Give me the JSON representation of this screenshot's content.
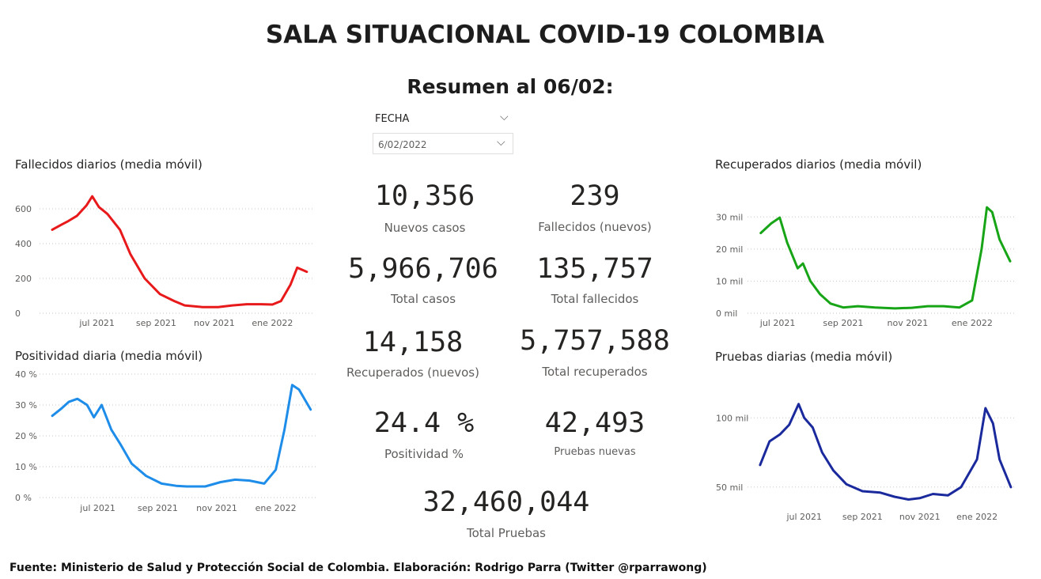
{
  "title": "SALA SITUACIONAL COVID-19 COLOMBIA",
  "summary": "Resumen al 06/02:",
  "filter": {
    "label": "FECHA",
    "value": "6/02/2022"
  },
  "kpis": {
    "nuevos_casos": {
      "value": "10,356",
      "label": "Nuevos casos"
    },
    "fallecidos_nuevos": {
      "value": "239",
      "label": "Fallecidos (nuevos)"
    },
    "total_casos": {
      "value": "5,966,706",
      "label": "Total casos"
    },
    "total_fallecidos": {
      "value": "135,757",
      "label": "Total fallecidos"
    },
    "recuperados_nuevos": {
      "value": "14,158",
      "label": "Recuperados (nuevos)"
    },
    "total_recuperados": {
      "value": "5,757,588",
      "label": "Total recuperados"
    },
    "positividad": {
      "value": "24.4 %",
      "label": "Positividad %"
    },
    "pruebas_nuevas": {
      "value": "42,493",
      "label": "Pruebas nuevas"
    },
    "total_pruebas": {
      "value": "32,460,044",
      "label": "Total Pruebas"
    }
  },
  "footer": "Fuente: Ministerio de Salud y Protección Social de Colombia. Elaboración: Rodrigo Parra (Twitter @rparrawong)",
  "chart_data": [
    {
      "id": "fallecidos",
      "type": "line",
      "title": "Fallecidos diarios (media móvil)",
      "color": "#e8191b",
      "grid": true,
      "x_labels": [
        "jul 2021",
        "sep 2021",
        "nov 2021",
        "ene 2022"
      ],
      "y_ticks": [
        "0",
        "200",
        "400",
        "600"
      ],
      "ylim": [
        0,
        700
      ],
      "x": [
        "2021-05-15",
        "2021-05-25",
        "2021-06-01",
        "2021-06-10",
        "2021-06-20",
        "2021-06-26",
        "2021-07-03",
        "2021-07-12",
        "2021-07-25",
        "2021-08-05",
        "2021-08-20",
        "2021-09-05",
        "2021-09-20",
        "2021-10-01",
        "2021-10-20",
        "2021-11-05",
        "2021-11-20",
        "2021-12-05",
        "2021-12-20",
        "2022-01-01",
        "2022-01-10",
        "2022-01-20",
        "2022-01-27",
        "2022-02-06"
      ],
      "y": [
        480,
        510,
        530,
        560,
        620,
        672,
        610,
        570,
        480,
        340,
        200,
        110,
        70,
        45,
        35,
        35,
        45,
        52,
        52,
        50,
        70,
        165,
        262,
        238
      ]
    },
    {
      "id": "positividad",
      "type": "line",
      "title": "Positividad diaria (media móvil)",
      "color": "#1e8de9",
      "grid": true,
      "x_labels": [
        "jul 2021",
        "sep 2021",
        "nov 2021",
        "ene 2022"
      ],
      "y_ticks": [
        "0 %",
        "10 %",
        "20 %",
        "30 %",
        "40 %"
      ],
      "ylim": [
        0,
        40
      ],
      "x": [
        "2021-05-15",
        "2021-05-25",
        "2021-06-01",
        "2021-06-10",
        "2021-06-20",
        "2021-06-27",
        "2021-07-05",
        "2021-07-15",
        "2021-07-25",
        "2021-08-05",
        "2021-08-20",
        "2021-09-05",
        "2021-09-20",
        "2021-10-01",
        "2021-10-20",
        "2021-11-05",
        "2021-11-20",
        "2021-12-05",
        "2021-12-20",
        "2022-01-01",
        "2022-01-10",
        "2022-01-18",
        "2022-01-25",
        "2022-02-06"
      ],
      "y": [
        26.5,
        29,
        31,
        32,
        30,
        26,
        30,
        22,
        17,
        11,
        7,
        4.5,
        3.8,
        3.6,
        3.6,
        5,
        5.8,
        5.5,
        4.5,
        9,
        22,
        36.5,
        35,
        28.5
      ]
    },
    {
      "id": "recuperados",
      "type": "line",
      "title": "Recuperados diarios (media móvil)",
      "color": "#17a517",
      "grid": true,
      "x_labels": [
        "jul 2021",
        "sep 2021",
        "nov 2021",
        "ene 2022"
      ],
      "y_ticks": [
        "0 mil",
        "10 mil",
        "20 mil",
        "30 mil"
      ],
      "ylim": [
        0,
        35000
      ],
      "x": [
        "2021-06-15",
        "2021-06-25",
        "2021-07-03",
        "2021-07-10",
        "2021-07-20",
        "2021-07-25",
        "2021-08-01",
        "2021-08-10",
        "2021-08-20",
        "2021-09-01",
        "2021-09-15",
        "2021-10-01",
        "2021-10-20",
        "2021-11-05",
        "2021-11-20",
        "2021-12-05",
        "2021-12-20",
        "2022-01-01",
        "2022-01-10",
        "2022-01-15",
        "2022-01-20",
        "2022-01-27",
        "2022-02-06"
      ],
      "y": [
        25000,
        28000,
        29800,
        22000,
        14000,
        15500,
        10000,
        6000,
        3000,
        1800,
        2200,
        1800,
        1500,
        1700,
        2200,
        2200,
        1800,
        4000,
        20000,
        33000,
        31500,
        23000,
        16200
      ]
    },
    {
      "id": "pruebas",
      "type": "line",
      "title": "Pruebas diarias (media móvil)",
      "color": "#1a2a9c",
      "grid": true,
      "x_labels": [
        "jul 2021",
        "sep 2021",
        "nov 2021",
        "ene 2022"
      ],
      "y_ticks": [
        "50 mil",
        "100 mil"
      ],
      "ylim": [
        35000,
        115000
      ],
      "x": [
        "2021-05-15",
        "2021-05-25",
        "2021-06-05",
        "2021-06-15",
        "2021-06-25",
        "2021-07-01",
        "2021-07-10",
        "2021-07-20",
        "2021-08-01",
        "2021-08-15",
        "2021-09-01",
        "2021-09-20",
        "2021-10-05",
        "2021-10-20",
        "2021-11-01",
        "2021-11-15",
        "2021-12-01",
        "2021-12-15",
        "2022-01-01",
        "2022-01-10",
        "2022-01-18",
        "2022-01-25",
        "2022-02-06"
      ],
      "y": [
        66000,
        83000,
        88000,
        95000,
        110000,
        100000,
        93000,
        75000,
        62000,
        52000,
        47000,
        46000,
        43000,
        41000,
        42000,
        45000,
        44000,
        50000,
        70000,
        107000,
        96000,
        70000,
        50000
      ]
    }
  ]
}
